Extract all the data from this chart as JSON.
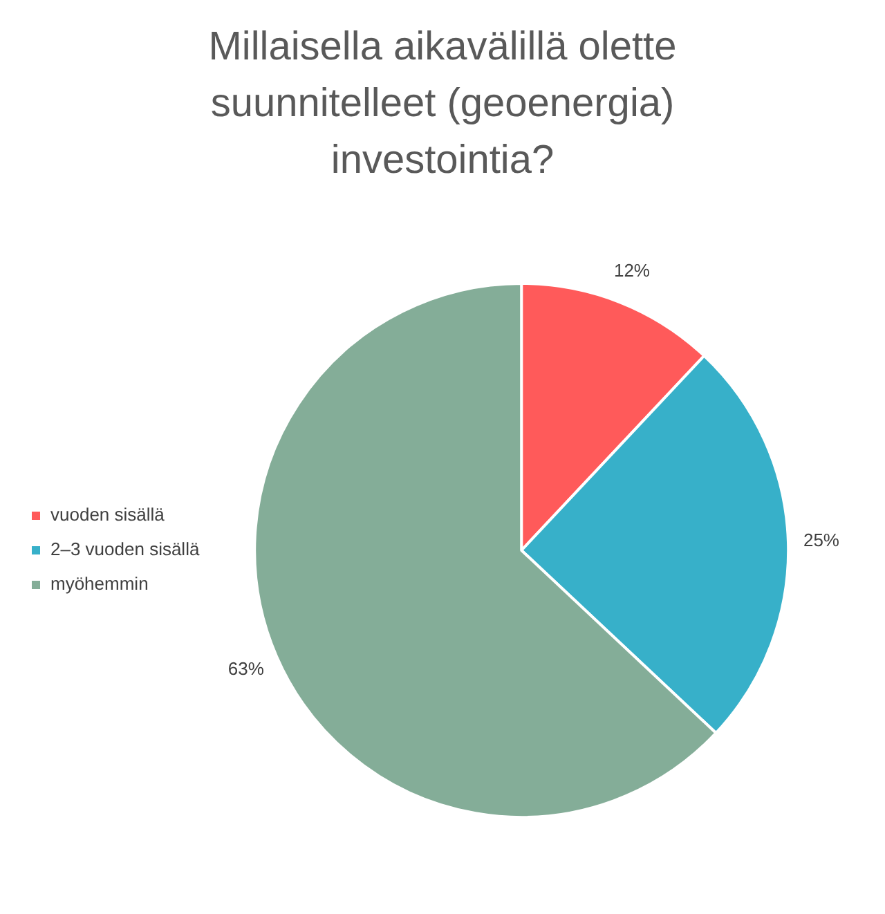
{
  "chart_data": {
    "type": "pie",
    "title": "Millaisella aikavälillä olette suunnitelleet (geoenergia) investointia?",
    "categories": [
      "vuoden sisällä",
      "2–3 vuoden sisällä",
      "myöhemmin"
    ],
    "values": [
      12,
      25,
      63
    ],
    "colors": [
      "#ff5a5a",
      "#37b0c9",
      "#84ad98"
    ],
    "value_labels": [
      "12%",
      "25%",
      "63%"
    ],
    "legend": "left"
  }
}
